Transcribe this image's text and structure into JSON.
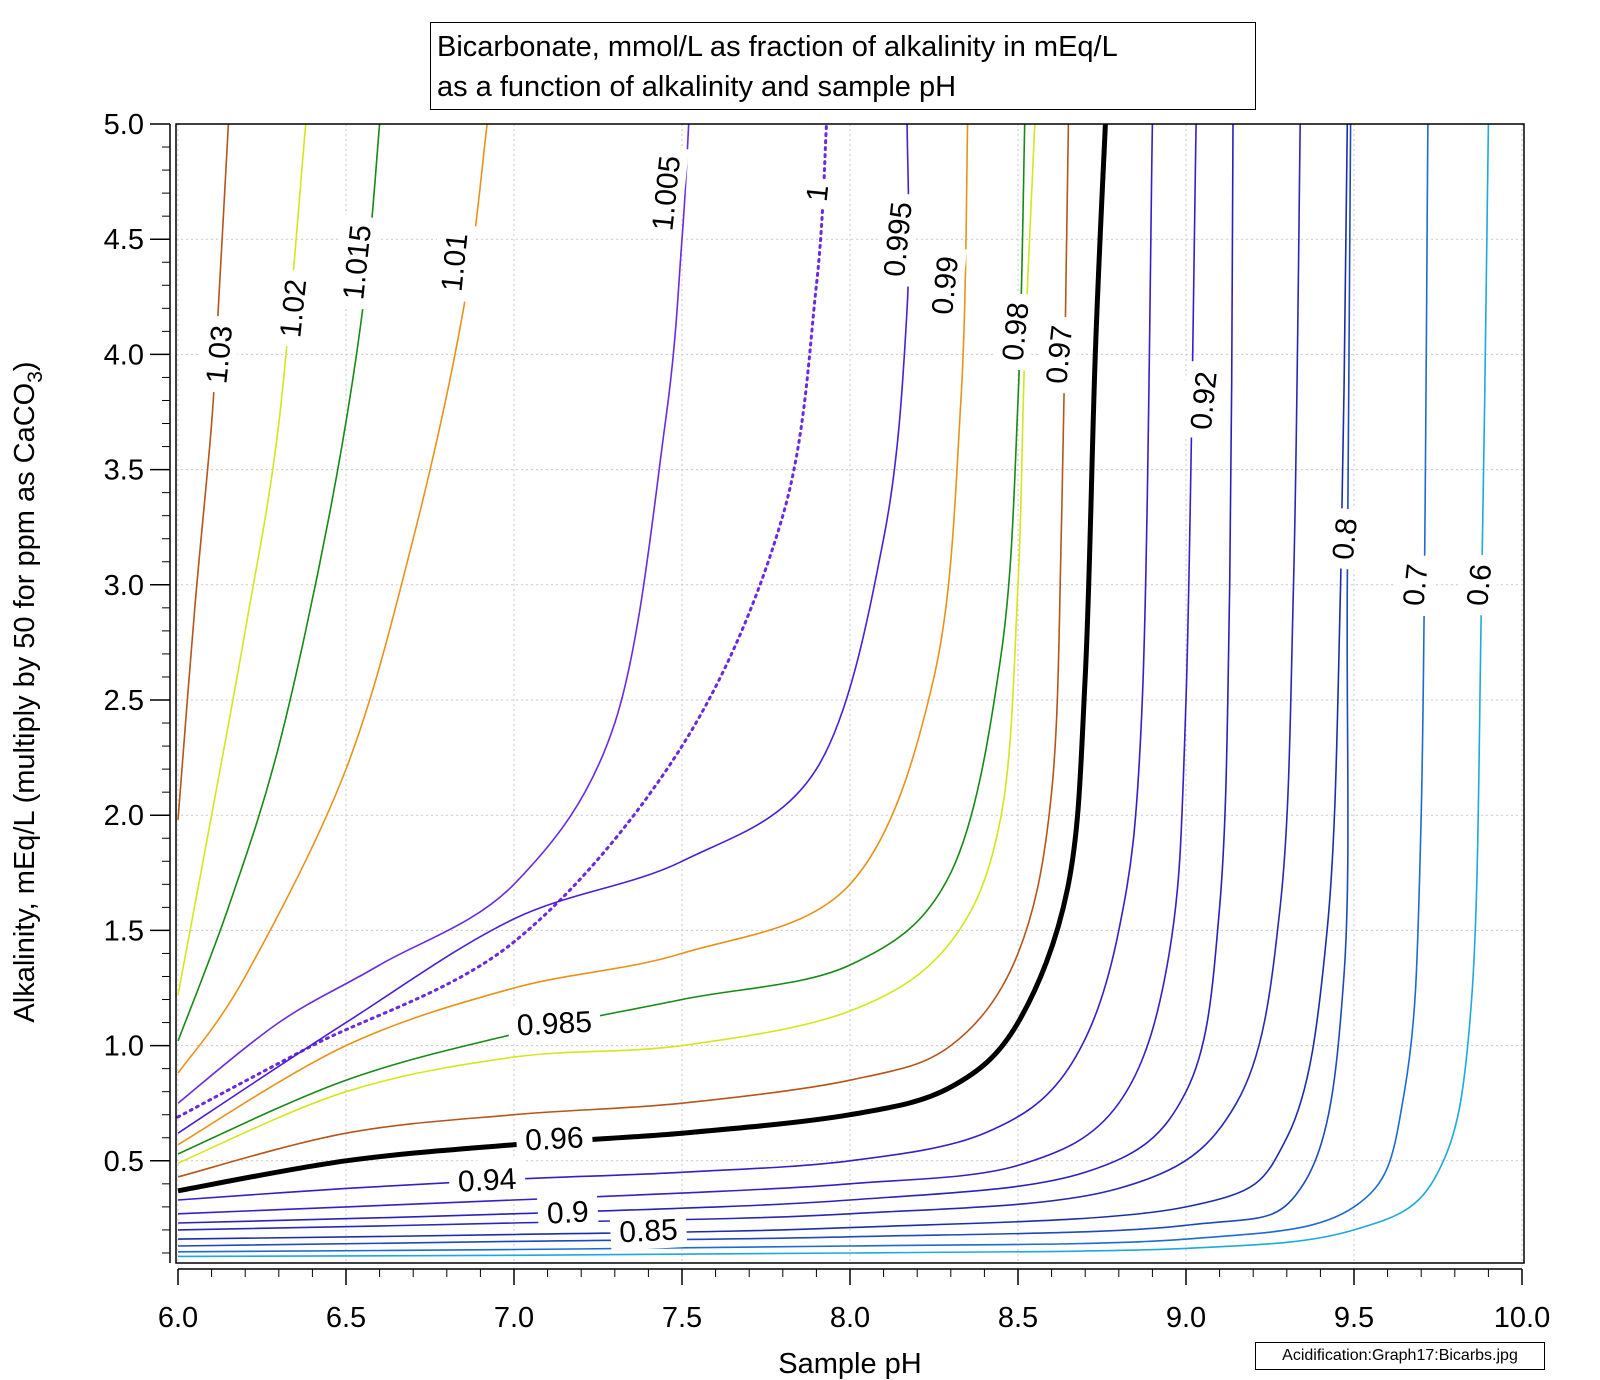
{
  "chart_data": {
    "type": "contour",
    "title_lines": [
      "Bicarbonate, mmol/L as fraction of alkalinity in mEq/L",
      "as a function of alkalinity and sample pH"
    ],
    "xlabel": "Sample pH",
    "ylabel_prefix": "Alkalinity, mEq/L (multiply by 50 for ppm as CaCO",
    "ylabel_subscript": "3",
    "ylabel_suffix": ")",
    "xlim": [
      6.0,
      10.0
    ],
    "ylim": [
      0.05,
      5.0
    ],
    "x_ticks": [
      "6.0",
      "6.5",
      "7.0",
      "7.5",
      "8.0",
      "8.5",
      "9.0",
      "9.5",
      "10.0"
    ],
    "y_ticks": [
      "0.5",
      "1.0",
      "1.5",
      "2.0",
      "2.5",
      "3.0",
      "3.5",
      "4.0",
      "4.5",
      "5.0"
    ],
    "grid": true,
    "contours": [
      {
        "level": "1.03",
        "color": "#b5541b",
        "label": "1.03",
        "label_at": [
          6.12,
          4.0
        ],
        "points": [
          [
            6.0,
            1.98
          ],
          [
            6.05,
            2.9
          ],
          [
            6.1,
            3.7
          ],
          [
            6.12,
            4.2
          ],
          [
            6.15,
            5.0
          ]
        ]
      },
      {
        "level": "1.02",
        "color": "#d4e61e",
        "label": "1.02",
        "label_at": [
          6.34,
          4.2
        ],
        "points": [
          [
            6.0,
            1.22
          ],
          [
            6.1,
            2.0
          ],
          [
            6.2,
            2.8
          ],
          [
            6.3,
            3.7
          ],
          [
            6.38,
            5.0
          ]
        ]
      },
      {
        "level": "1.015",
        "color": "#158a15",
        "label": "1.015",
        "label_at": [
          6.53,
          4.4
        ],
        "points": [
          [
            6.0,
            1.02
          ],
          [
            6.15,
            1.6
          ],
          [
            6.3,
            2.3
          ],
          [
            6.45,
            3.3
          ],
          [
            6.55,
            4.2
          ],
          [
            6.6,
            5.0
          ]
        ]
      },
      {
        "level": "1.01",
        "color": "#e8921c",
        "label": "1.01",
        "label_at": [
          6.82,
          4.4
        ],
        "points": [
          [
            6.0,
            0.88
          ],
          [
            6.2,
            1.3
          ],
          [
            6.5,
            2.2
          ],
          [
            6.7,
            3.2
          ],
          [
            6.85,
            4.2
          ],
          [
            6.92,
            5.0
          ]
        ]
      },
      {
        "level": "1.005",
        "color": "#6a2ae0",
        "label": "1.005",
        "label_at": [
          7.45,
          4.7
        ],
        "points": [
          [
            6.0,
            0.75
          ],
          [
            6.3,
            1.1
          ],
          [
            6.6,
            1.35
          ],
          [
            7.0,
            1.7
          ],
          [
            7.3,
            2.4
          ],
          [
            7.45,
            3.7
          ],
          [
            7.5,
            4.5
          ],
          [
            7.52,
            5.0
          ]
        ]
      },
      {
        "level": "1",
        "color": "#6a2ae0",
        "dashed": true,
        "label": "1",
        "label_at": [
          7.9,
          4.7
        ],
        "points": [
          [
            6.0,
            0.69
          ],
          [
            6.4,
            1.0
          ],
          [
            7.0,
            1.45
          ],
          [
            7.5,
            2.3
          ],
          [
            7.8,
            3.3
          ],
          [
            7.9,
            4.3
          ],
          [
            7.93,
            5.0
          ]
        ]
      },
      {
        "level": "0.995",
        "color": "#4b1ed6",
        "label": "0.995",
        "label_at": [
          8.14,
          4.5
        ],
        "points": [
          [
            6.0,
            0.62
          ],
          [
            6.5,
            1.1
          ],
          [
            7.0,
            1.55
          ],
          [
            7.5,
            1.8
          ],
          [
            7.9,
            2.2
          ],
          [
            8.1,
            3.2
          ],
          [
            8.17,
            4.2
          ],
          [
            8.17,
            5.0
          ]
        ]
      },
      {
        "level": "0.99",
        "color": "#e8921c",
        "label": "0.99",
        "label_at": [
          8.28,
          4.3
        ],
        "points": [
          [
            6.0,
            0.57
          ],
          [
            6.5,
            1.0
          ],
          [
            7.0,
            1.25
          ],
          [
            7.5,
            1.4
          ],
          [
            8.0,
            1.7
          ],
          [
            8.25,
            2.6
          ],
          [
            8.33,
            3.8
          ],
          [
            8.35,
            5.0
          ]
        ]
      },
      {
        "level": "0.985",
        "color": "#158a15",
        "label": "0.985",
        "label_at": [
          7.12,
          1.1
        ],
        "points": [
          [
            6.0,
            0.53
          ],
          [
            6.5,
            0.85
          ],
          [
            7.0,
            1.05
          ],
          [
            7.5,
            1.2
          ],
          [
            8.0,
            1.35
          ],
          [
            8.3,
            1.75
          ],
          [
            8.45,
            2.7
          ],
          [
            8.5,
            3.8
          ],
          [
            8.52,
            5.0
          ]
        ]
      },
      {
        "level": "0.98",
        "color": "#d4e61e",
        "label": "0.98",
        "label_at": [
          8.49,
          4.1
        ],
        "points": [
          [
            6.0,
            0.49
          ],
          [
            6.5,
            0.8
          ],
          [
            7.0,
            0.95
          ],
          [
            7.5,
            1.0
          ],
          [
            8.0,
            1.15
          ],
          [
            8.3,
            1.45
          ],
          [
            8.45,
            2.0
          ],
          [
            8.5,
            3.0
          ],
          [
            8.52,
            4.0
          ],
          [
            8.55,
            5.0
          ]
        ]
      },
      {
        "level": "0.97",
        "color": "#b5541b",
        "label": "0.97",
        "label_at": [
          8.62,
          4.0
        ],
        "points": [
          [
            6.0,
            0.43
          ],
          [
            6.5,
            0.62
          ],
          [
            7.0,
            0.7
          ],
          [
            7.5,
            0.75
          ],
          [
            8.0,
            0.85
          ],
          [
            8.3,
            1.0
          ],
          [
            8.5,
            1.4
          ],
          [
            8.6,
            2.1
          ],
          [
            8.63,
            3.3
          ],
          [
            8.65,
            5.0
          ]
        ]
      },
      {
        "level": "0.96",
        "color": "#000000",
        "thick": true,
        "label": "0.96",
        "label_at": [
          7.12,
          0.6
        ],
        "points": [
          [
            6.0,
            0.37
          ],
          [
            6.5,
            0.5
          ],
          [
            7.0,
            0.57
          ],
          [
            7.5,
            0.62
          ],
          [
            8.0,
            0.7
          ],
          [
            8.3,
            0.82
          ],
          [
            8.5,
            1.1
          ],
          [
            8.65,
            1.7
          ],
          [
            8.7,
            2.6
          ],
          [
            8.73,
            4.0
          ],
          [
            8.76,
            5.0
          ]
        ]
      },
      {
        "level": "0.95",
        "color": "#3a1cc8",
        "label": "",
        "points": [
          [
            6.0,
            0.33
          ],
          [
            6.5,
            0.38
          ],
          [
            7.0,
            0.42
          ],
          [
            7.5,
            0.45
          ],
          [
            8.0,
            0.5
          ],
          [
            8.4,
            0.62
          ],
          [
            8.65,
            0.9
          ],
          [
            8.8,
            1.5
          ],
          [
            8.87,
            2.5
          ],
          [
            8.9,
            5.0
          ]
        ]
      },
      {
        "level": "0.94",
        "color": "#3a1cc8",
        "label": "0.94",
        "label_at": [
          6.92,
          0.42
        ],
        "points": [
          [
            6.0,
            0.27
          ],
          [
            6.5,
            0.3
          ],
          [
            7.0,
            0.33
          ],
          [
            7.5,
            0.36
          ],
          [
            8.0,
            0.4
          ],
          [
            8.5,
            0.48
          ],
          [
            8.8,
            0.75
          ],
          [
            8.95,
            1.4
          ],
          [
            9.0,
            2.5
          ],
          [
            9.03,
            5.0
          ]
        ]
      },
      {
        "level": "0.92",
        "color": "#2a20bc",
        "label": "0.92",
        "label_at": [
          9.05,
          3.8
        ],
        "points": [
          [
            6.0,
            0.23
          ],
          [
            7.0,
            0.27
          ],
          [
            8.0,
            0.33
          ],
          [
            8.7,
            0.45
          ],
          [
            9.0,
            0.8
          ],
          [
            9.1,
            1.6
          ],
          [
            9.13,
            3.0
          ],
          [
            9.14,
            5.0
          ]
        ]
      },
      {
        "level": "0.9",
        "color": "#2828b4",
        "label": "0.9",
        "label_at": [
          7.16,
          0.28
        ],
        "points": [
          [
            6.0,
            0.2
          ],
          [
            7.0,
            0.23
          ],
          [
            8.0,
            0.27
          ],
          [
            8.8,
            0.38
          ],
          [
            9.15,
            0.75
          ],
          [
            9.28,
            1.6
          ],
          [
            9.32,
            3.0
          ],
          [
            9.34,
            5.0
          ]
        ]
      },
      {
        "level": "0.85",
        "color": "#1a2ea8",
        "label": "0.85",
        "label_at": [
          7.4,
          0.2
        ],
        "points": [
          [
            6.0,
            0.16
          ],
          [
            7.0,
            0.18
          ],
          [
            8.0,
            0.21
          ],
          [
            9.0,
            0.3
          ],
          [
            9.3,
            0.6
          ],
          [
            9.42,
            1.5
          ],
          [
            9.46,
            3.0
          ],
          [
            9.48,
            5.0
          ]
        ]
      },
      {
        "level": "0.8",
        "color": "#1e4ab8",
        "label": "0.8",
        "label_at": [
          9.47,
          3.2
        ],
        "points": [
          [
            6.0,
            0.13
          ],
          [
            7.0,
            0.15
          ],
          [
            8.0,
            0.17
          ],
          [
            9.0,
            0.22
          ],
          [
            9.35,
            0.4
          ],
          [
            9.47,
            1.3
          ],
          [
            9.48,
            3.0
          ],
          [
            9.49,
            5.0
          ]
        ]
      },
      {
        "level": "0.7",
        "color": "#1e6ad0",
        "label": "0.7",
        "label_at": [
          9.68,
          3.0
        ],
        "points": [
          [
            6.0,
            0.105
          ],
          [
            7.0,
            0.115
          ],
          [
            8.0,
            0.13
          ],
          [
            9.0,
            0.16
          ],
          [
            9.5,
            0.3
          ],
          [
            9.65,
            0.8
          ],
          [
            9.7,
            2.0
          ],
          [
            9.72,
            5.0
          ]
        ]
      },
      {
        "level": "0.6",
        "color": "#1ea8dc",
        "label": "0.6",
        "label_at": [
          9.87,
          3.0
        ],
        "points": [
          [
            6.0,
            0.085
          ],
          [
            7.0,
            0.09
          ],
          [
            8.0,
            0.1
          ],
          [
            9.0,
            0.12
          ],
          [
            9.5,
            0.2
          ],
          [
            9.75,
            0.45
          ],
          [
            9.85,
            1.2
          ],
          [
            9.88,
            3.0
          ],
          [
            9.9,
            5.0
          ]
        ]
      }
    ]
  },
  "footer": "Acidification:Graph17:Bicarbs.jpg"
}
